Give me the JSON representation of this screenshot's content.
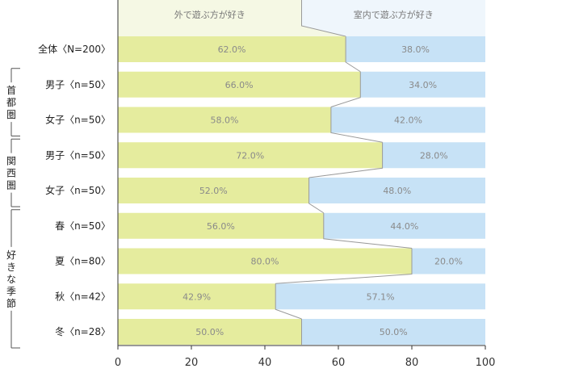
{
  "chart_data": {
    "type": "bar",
    "stacked": true,
    "orientation": "horizontal",
    "title": "",
    "xlabel": "",
    "ylabel": "",
    "xlim": [
      0,
      100
    ],
    "x_ticks": [
      "0",
      "20",
      "40",
      "60",
      "80",
      "100"
    ],
    "grid": false,
    "series": [
      {
        "name": "外で遊ぶ方が好き",
        "color": "#e5ec9e"
      },
      {
        "name": "室内で遊ぶ方が好き",
        "color": "#c7e2f6"
      }
    ],
    "header_colors": [
      "#f5f8e4",
      "#eff6fc"
    ],
    "categories": [
      {
        "label": "全体〈N=200〉",
        "outdoor": 62.0,
        "indoor": 38.0,
        "outdoor_label": "62.0%",
        "indoor_label": "38.0%"
      },
      {
        "label": "男子〈n=50〉",
        "outdoor": 66.0,
        "indoor": 34.0,
        "outdoor_label": "66.0%",
        "indoor_label": "34.0%"
      },
      {
        "label": "女子〈n=50〉",
        "outdoor": 58.0,
        "indoor": 42.0,
        "outdoor_label": "58.0%",
        "indoor_label": "42.0%"
      },
      {
        "label": "男子〈n=50〉",
        "outdoor": 72.0,
        "indoor": 28.0,
        "outdoor_label": "72.0%",
        "indoor_label": "28.0%"
      },
      {
        "label": "女子〈n=50〉",
        "outdoor": 52.0,
        "indoor": 48.0,
        "outdoor_label": "52.0%",
        "indoor_label": "48.0%"
      },
      {
        "label": "春〈n=50〉",
        "outdoor": 56.0,
        "indoor": 44.0,
        "outdoor_label": "56.0%",
        "indoor_label": "44.0%"
      },
      {
        "label": "夏〈n=80〉",
        "outdoor": 80.0,
        "indoor": 20.0,
        "outdoor_label": "80.0%",
        "indoor_label": "20.0%"
      },
      {
        "label": "秋〈n=42〉",
        "outdoor": 42.9,
        "indoor": 57.1,
        "outdoor_label": "42.9%",
        "indoor_label": "57.1%"
      },
      {
        "label": "冬〈n=28〉",
        "outdoor": 50.0,
        "indoor": 50.0,
        "outdoor_label": "50.0%",
        "indoor_label": "50.0%"
      }
    ],
    "groups": [
      {
        "label": "首都圏",
        "rows": [
          1,
          2
        ]
      },
      {
        "label": "関西圏",
        "rows": [
          3,
          4
        ]
      },
      {
        "label": "好きな季節",
        "rows": [
          5,
          8
        ]
      }
    ]
  }
}
